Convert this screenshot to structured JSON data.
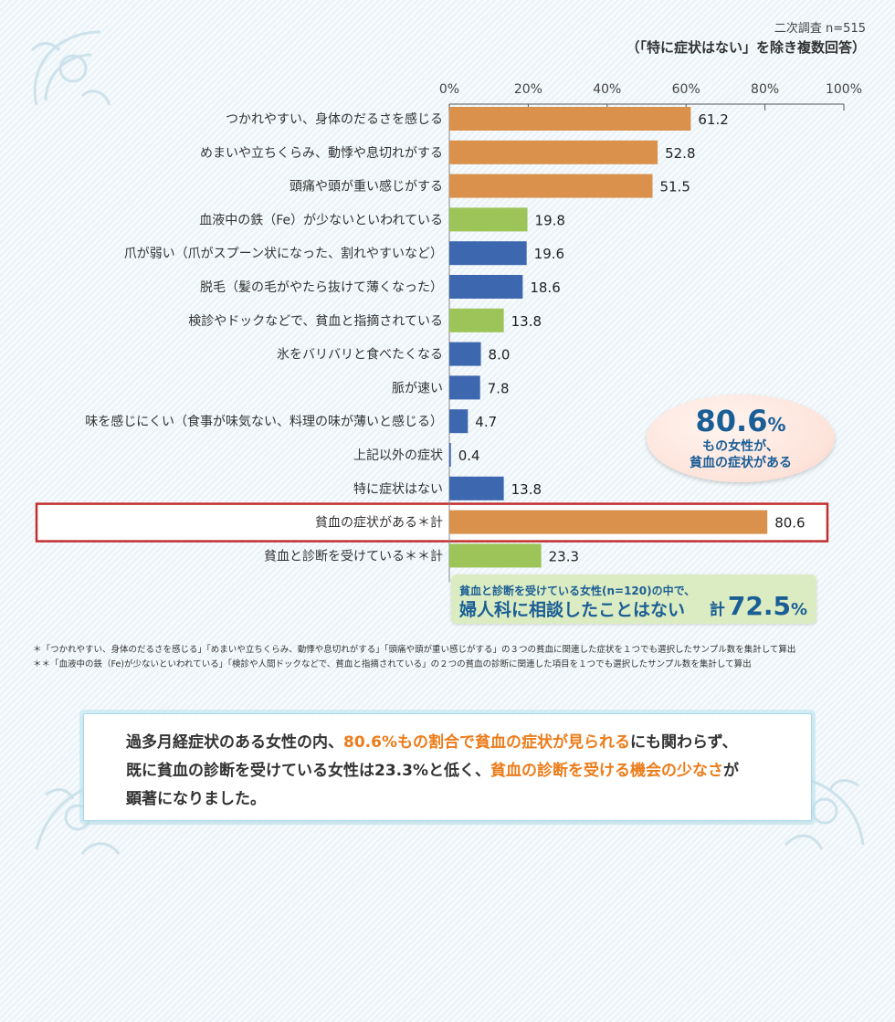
{
  "header": {
    "survey_n": "二次調査 n=515",
    "note": "（「特に症状はない」を除き複数回答）"
  },
  "colors": {
    "orange": "#d9914c",
    "green": "#9cc459",
    "blue": "#3d67ae",
    "highlight_border": "#c22e2e",
    "accent_text": "#ec7c1a",
    "callout_text": "#1a5e96"
  },
  "chart_data": {
    "type": "bar",
    "orientation": "horizontal",
    "x_ticks": [
      "0%",
      "20%",
      "40%",
      "60%",
      "80%",
      "100%"
    ],
    "xlim": [
      0,
      100
    ],
    "categories": [
      "つかれやすい、身体のだるさを感じる",
      "めまいや立ちくらみ、動悸や息切れがする",
      "頭痛や頭が重い感じがする",
      "血液中の鉄（Fe）が少ないといわれている",
      "爪が弱い（爪がスプーン状になった、割れやすいなど）",
      "脱毛（髪の毛がやたら抜けて薄くなった）",
      "検診やドックなどで、貧血と指摘されている",
      "氷をバリバリと食べたくなる",
      "脈が速い",
      "味を感じにくい（食事が味気ない、料理の味が薄いと感じる）",
      "上記以外の症状",
      "特に症状はない",
      "貧血の症状がある＊計",
      "貧血と診断を受けている＊＊計"
    ],
    "values": [
      61.2,
      52.8,
      51.5,
      19.8,
      19.6,
      18.6,
      13.8,
      8.0,
      7.8,
      4.7,
      0.4,
      13.8,
      80.6,
      23.3
    ],
    "value_labels": [
      "61.2",
      "52.8",
      "51.5",
      "19.8",
      "19.6",
      "18.6",
      "13.8",
      "8.0",
      "7.8",
      "4.7",
      "0.4",
      "13.8",
      "80.6",
      "23.3"
    ],
    "bar_colors": [
      "orange",
      "orange",
      "orange",
      "green",
      "blue",
      "blue",
      "green",
      "blue",
      "blue",
      "blue",
      "blue",
      "blue",
      "orange",
      "green"
    ],
    "highlighted_category": "貧血の症状がある＊計"
  },
  "callout_pink": {
    "number": "80.6",
    "unit": "%",
    "line1": "もの女性が、",
    "line2": "貧血の症状がある"
  },
  "callout_green": {
    "line1": "貧血と診断を受けている女性(n=120)の中で、",
    "line2": "婦人科に相談したことはない",
    "total_prefix": "計",
    "total_number": "72.5",
    "total_unit": "%"
  },
  "footnotes": [
    "＊「つかれやすい、身体のだるさを感じる」「めまいや立ちくらみ、動悸や息切れがする」「頭痛や頭が重い感じがする」の３つの貧血に関連した症状を１つでも選択したサンプル数を集計して算出",
    "＊＊「血液中の鉄（Fe)が少ないといわれている」「検診や人間ドックなどで、貧血と指摘されている」の２つの貧血の診断に関連した項目を１つでも選択したサンプル数を集計して算出"
  ],
  "summary": {
    "s1": "過多月経症状のある女性の内、",
    "s2": "80.6%もの割合で貧血の症状が見られる",
    "s3": "にも関わらず、",
    "s4": "既に貧血の診断を受けている女性は23.3%と低く、",
    "s5": "貧血の診断を受ける機会の少なさ",
    "s6": "が",
    "s7": "顕著になりました。"
  }
}
